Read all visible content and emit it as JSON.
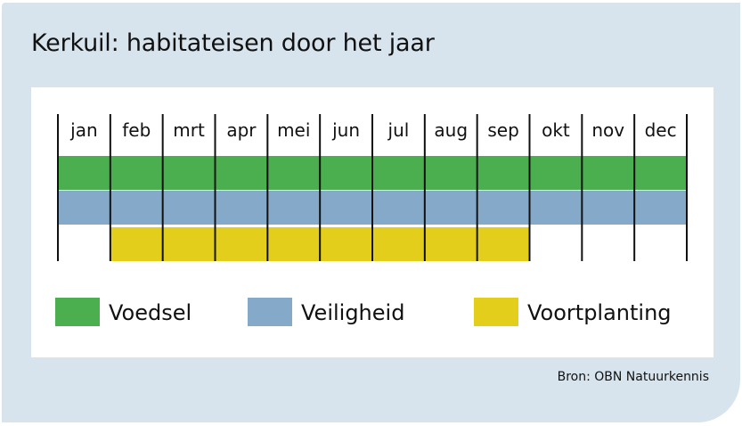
{
  "title": "Kerkuil: habitateisen door het jaar",
  "source": "Bron: OBN Natuurkennis",
  "chart_data": {
    "type": "gantt",
    "title": "Kerkuil: habitateisen door het jaar",
    "categories": [
      "jan",
      "feb",
      "mrt",
      "apr",
      "mei",
      "jun",
      "jul",
      "aug",
      "sep",
      "okt",
      "nov",
      "dec"
    ],
    "series": [
      {
        "name": "Voedsel",
        "color": "#4caf4f",
        "start_month": 1,
        "end_month": 12
      },
      {
        "name": "Veiligheid",
        "color": "#85a9c8",
        "start_month": 1,
        "end_month": 12
      },
      {
        "name": "Voortplanting",
        "color": "#e2ce1b",
        "start_month": 2,
        "end_month": 9
      }
    ],
    "legend_position": "bottom"
  }
}
